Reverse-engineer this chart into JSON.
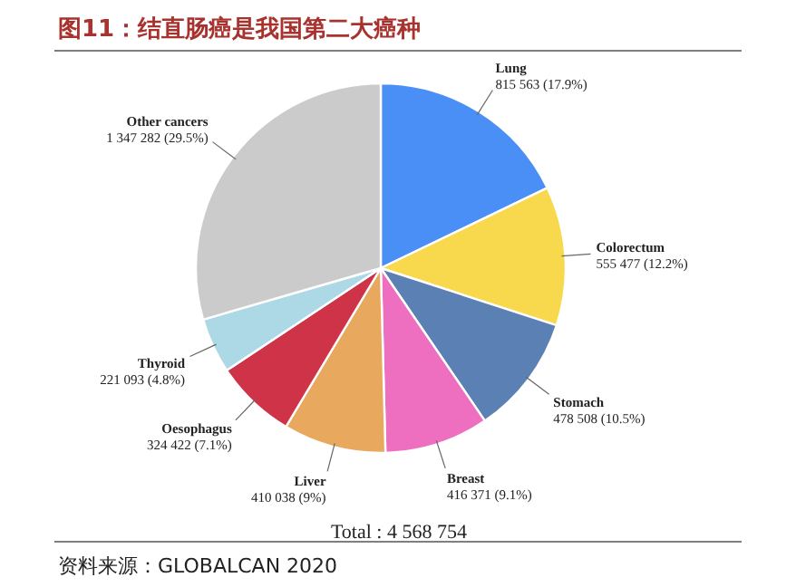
{
  "chart_data": {
    "type": "pie",
    "title": "图11：结直肠癌是我国第二大癌种",
    "categories": [
      "Lung",
      "Colorectum",
      "Stomach",
      "Breast",
      "Liver",
      "Oesophagus",
      "Thyroid",
      "Other cancers"
    ],
    "values": [
      815563,
      555477,
      478508,
      416371,
      410038,
      324422,
      221093,
      1347282
    ],
    "colors": [
      "#4a8ff5",
      "#f8d84c",
      "#5a80b4",
      "#ee6fbf",
      "#e8a95f",
      "#cf3348",
      "#add8e6",
      "#cbcbcb"
    ],
    "value_labels": [
      "815 563 (17.9%)",
      "555 477 (12.2%)",
      "478 508 (10.5%)",
      "416 371 (9.1%)",
      "410 038 (9%)",
      "324 422 (7.1%)",
      "221 093 (4.8%)",
      "1 347 282 (29.5%)"
    ],
    "annotations": [
      "Total : 4 568 754",
      "资料来源：GLOBALCAN 2020"
    ]
  }
}
